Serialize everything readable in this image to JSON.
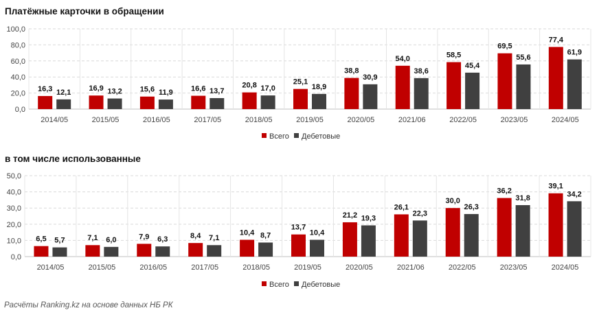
{
  "colors": {
    "total": "#C00000",
    "debit": "#404040"
  },
  "footer": {
    "source": "Расчёты Ranking.kz на основе данных НБ РК"
  },
  "chart_data": [
    {
      "type": "bar",
      "title": "Платёжные карточки в обращении",
      "categories": [
        "2014/05",
        "2015/05",
        "2016/05",
        "2017/05",
        "2018/05",
        "2019/05",
        "2020/05",
        "2021/06",
        "2022/05",
        "2023/05",
        "2024/05"
      ],
      "ylim": [
        0,
        100
      ],
      "yticks": [
        "0,0",
        "20,0",
        "40,0",
        "60,0",
        "80,0",
        "100,0"
      ],
      "grid": true,
      "legend_position": "bottom",
      "series": [
        {
          "name": "Всего",
          "values": [
            16.3,
            16.9,
            15.6,
            16.6,
            20.8,
            25.1,
            38.8,
            54.0,
            58.5,
            69.5,
            77.4
          ],
          "labels": [
            "16,3",
            "16,9",
            "15,6",
            "16,6",
            "20,8",
            "25,1",
            "38,8",
            "54,0",
            "58,5",
            "69,5",
            "77,4"
          ]
        },
        {
          "name": "Дебетовые",
          "values": [
            12.1,
            13.2,
            11.9,
            13.7,
            17.0,
            18.9,
            30.9,
            38.6,
            45.4,
            55.6,
            61.9
          ],
          "labels": [
            "12,1",
            "13,2",
            "11,9",
            "13,7",
            "17,0",
            "18,9",
            "30,9",
            "38,6",
            "45,4",
            "55,6",
            "61,9"
          ]
        }
      ]
    },
    {
      "type": "bar",
      "title": "в том числе использованные",
      "categories": [
        "2014/05",
        "2015/05",
        "2016/05",
        "2017/05",
        "2018/05",
        "2019/05",
        "2020/05",
        "2021/06",
        "2022/05",
        "2023/05",
        "2024/05"
      ],
      "ylim": [
        0,
        50
      ],
      "yticks": [
        "0,0",
        "10,0",
        "20,0",
        "30,0",
        "40,0",
        "50,0"
      ],
      "grid": true,
      "legend_position": "bottom",
      "series": [
        {
          "name": "Всего",
          "values": [
            6.5,
            7.1,
            7.9,
            8.4,
            10.4,
            13.7,
            21.2,
            26.1,
            30.0,
            36.2,
            39.1
          ],
          "labels": [
            "6,5",
            "7,1",
            "7,9",
            "8,4",
            "10,4",
            "13,7",
            "21,2",
            "26,1",
            "30,0",
            "36,2",
            "39,1"
          ]
        },
        {
          "name": "Дебетовые",
          "values": [
            5.7,
            6.0,
            6.3,
            7.1,
            8.7,
            10.4,
            19.3,
            22.3,
            26.3,
            31.8,
            34.2
          ],
          "labels": [
            "5,7",
            "6,0",
            "6,3",
            "7,1",
            "8,7",
            "10,4",
            "19,3",
            "22,3",
            "26,3",
            "31,8",
            "34,2"
          ]
        }
      ]
    }
  ]
}
